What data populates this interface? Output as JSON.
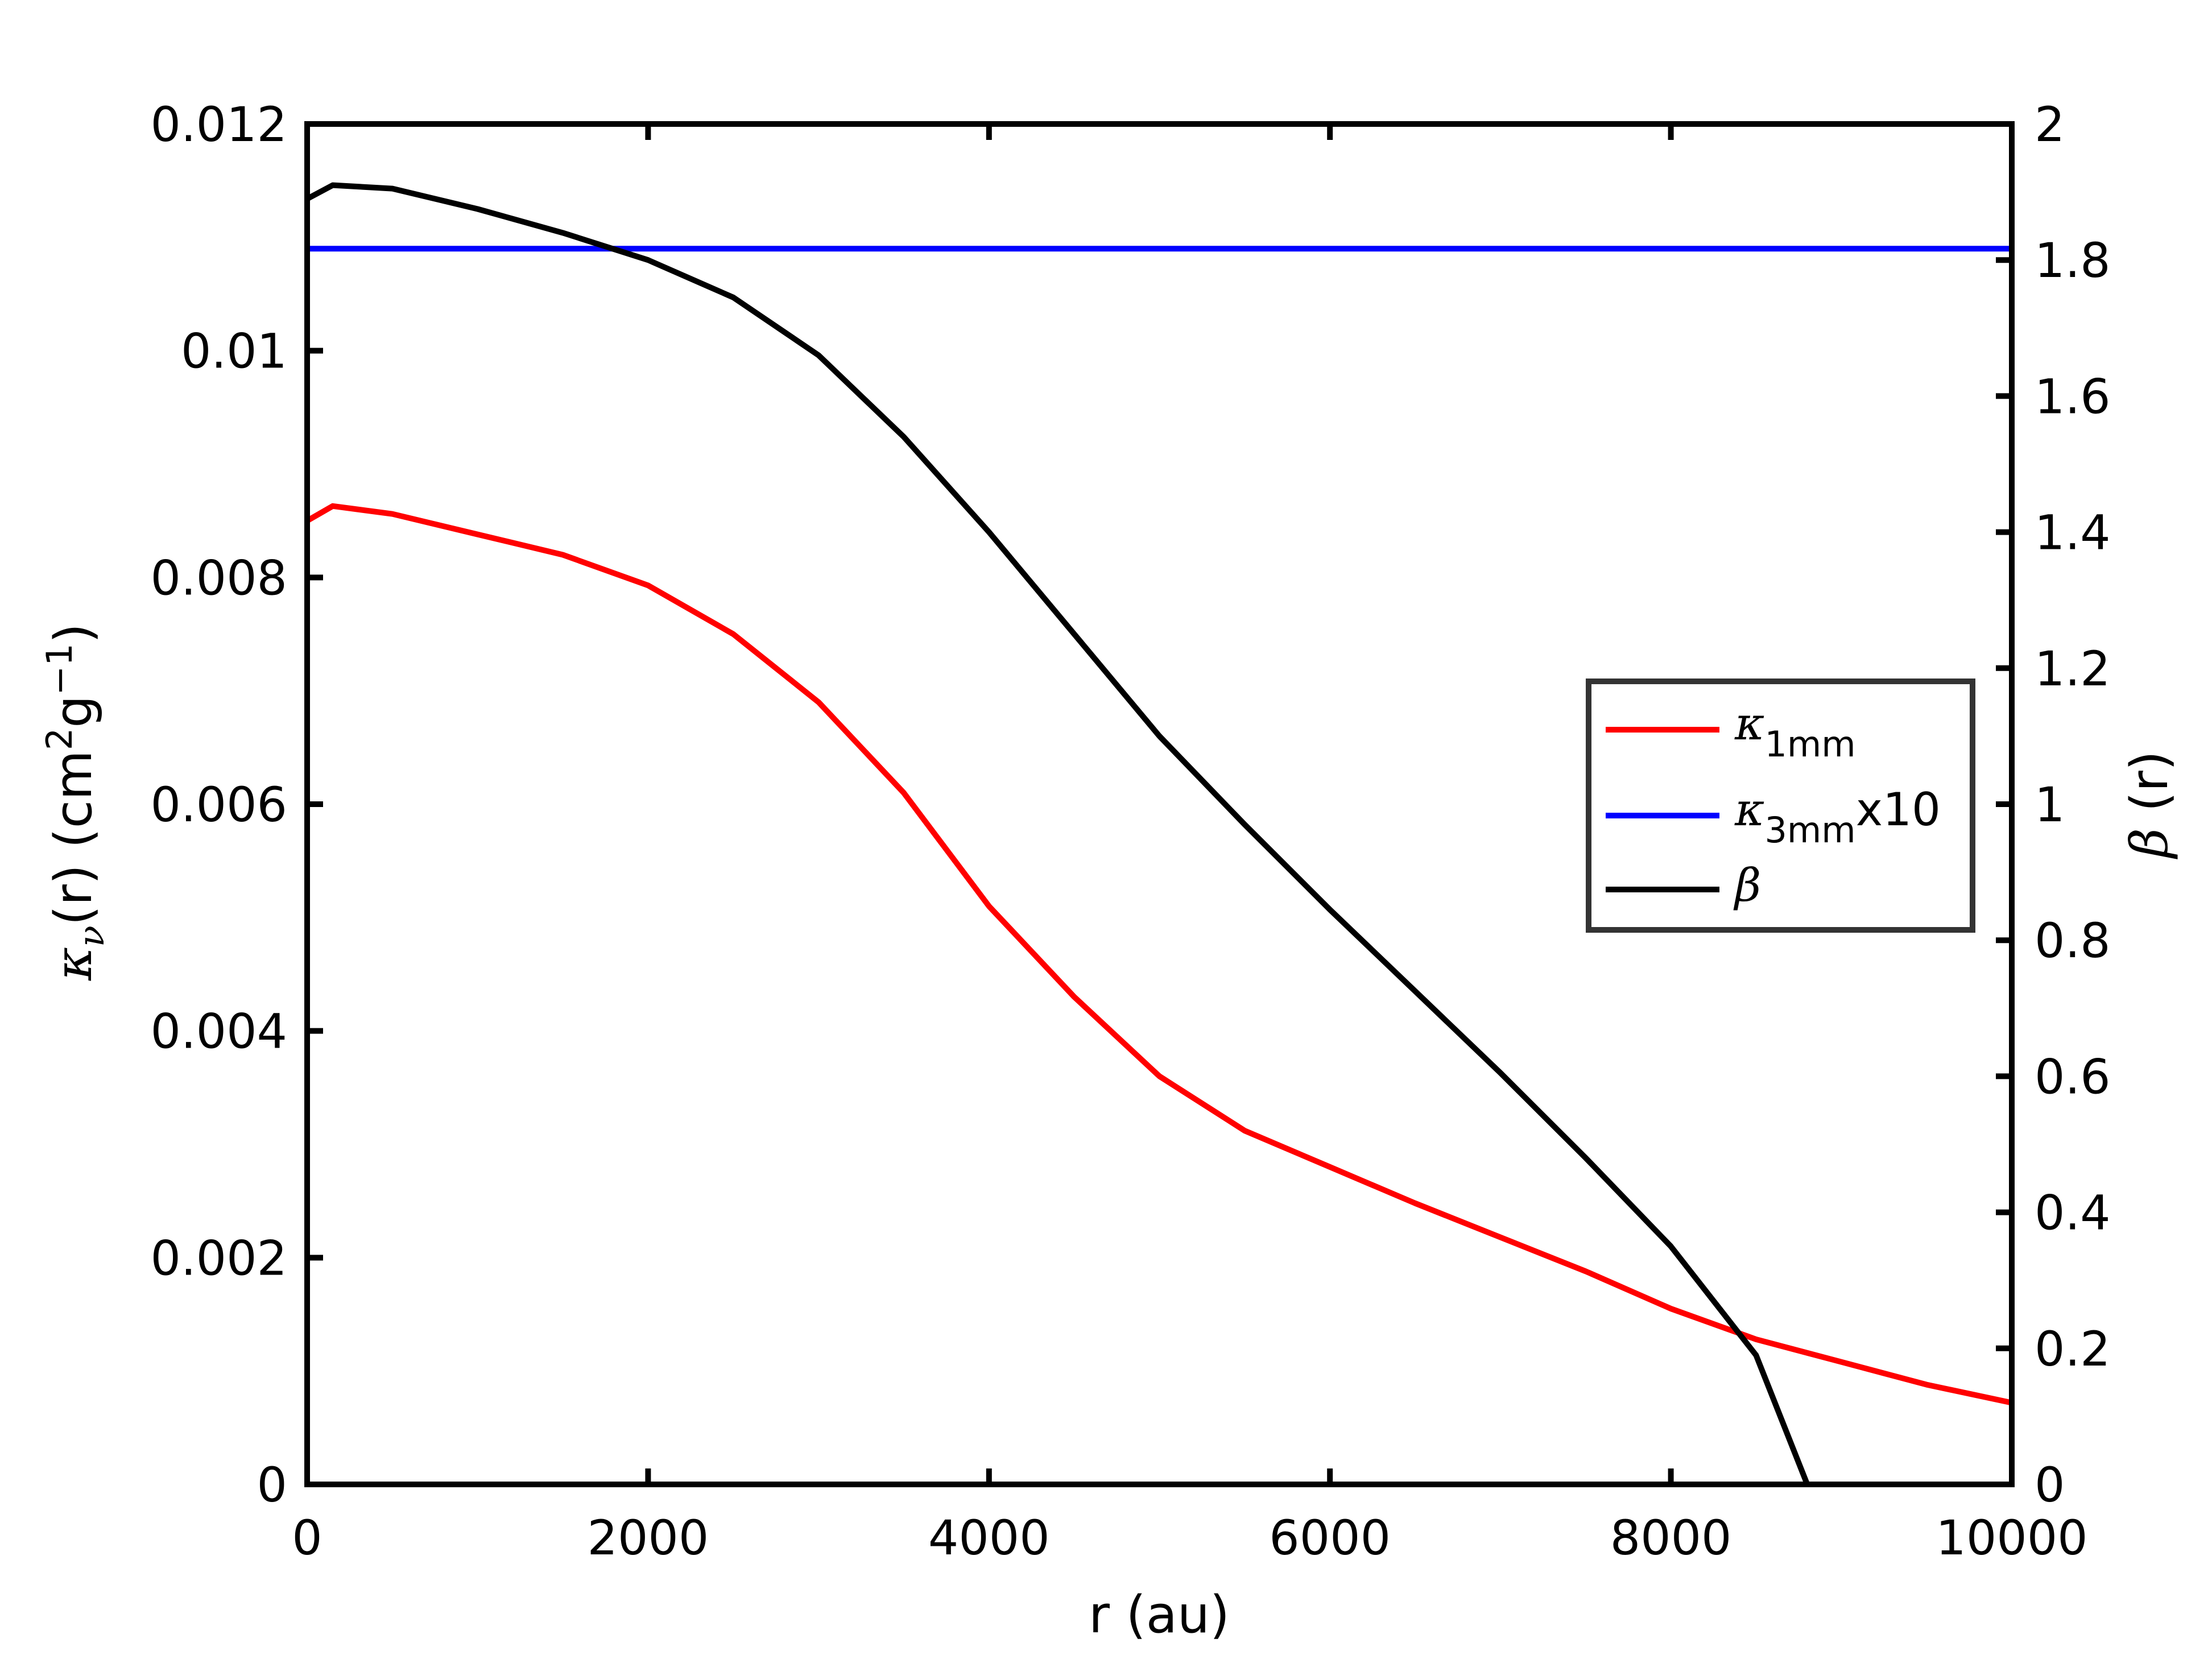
{
  "chart_data": {
    "type": "line",
    "x_axis": {
      "label": "r (au)",
      "range": [
        0,
        10000
      ],
      "ticks": [
        0,
        2000,
        4000,
        6000,
        8000,
        10000
      ],
      "tick_labels": [
        "0",
        "2000",
        "4000",
        "6000",
        "8000",
        "10000"
      ]
    },
    "y_left": {
      "label_parts": {
        "kappa": "κ",
        "sub": "ν",
        "r": "(r)",
        "open": "(cm",
        "sup2": "2",
        "g": "g",
        "supm1": "−1",
        "close": ")"
      },
      "range": [
        0,
        0.012
      ],
      "ticks": [
        0,
        0.002,
        0.004,
        0.006,
        0.008,
        0.01,
        0.012
      ],
      "tick_labels": [
        "0",
        "0.002",
        "0.004",
        "0.006",
        "0.008",
        "0.01",
        "0.012"
      ]
    },
    "y_right": {
      "label_parts": {
        "beta": "β",
        "r": "(r)"
      },
      "range": [
        0,
        2
      ],
      "ticks": [
        0,
        0.2,
        0.4,
        0.6,
        0.8,
        1,
        1.2,
        1.4,
        1.6,
        1.8,
        2
      ],
      "tick_labels": [
        "0",
        "0.2",
        "0.4",
        "0.6",
        "0.8",
        "1",
        "1.2",
        "1.4",
        "1.6",
        "1.8",
        "2"
      ]
    },
    "grid": false,
    "legend_placement": "right",
    "series": [
      {
        "key": "kappa_1mm",
        "axis": "left",
        "color": "#ff0000",
        "legend": {
          "sym": "κ",
          "sub": "1mm",
          "suffix": ""
        },
        "points": [
          [
            0,
            0.0085
          ],
          [
            150,
            0.00863
          ],
          [
            500,
            0.00856
          ],
          [
            1000,
            0.00838
          ],
          [
            1500,
            0.0082
          ],
          [
            2000,
            0.00793
          ],
          [
            2500,
            0.0075
          ],
          [
            3000,
            0.0069
          ],
          [
            3500,
            0.0061
          ],
          [
            4000,
            0.0051
          ],
          [
            4500,
            0.0043
          ],
          [
            5000,
            0.0036
          ],
          [
            5500,
            0.00312
          ],
          [
            6000,
            0.0028
          ],
          [
            6500,
            0.00248
          ],
          [
            7000,
            0.00218
          ],
          [
            7500,
            0.00188
          ],
          [
            8000,
            0.00155
          ],
          [
            8500,
            0.00128
          ],
          [
            9000,
            0.00108
          ],
          [
            9500,
            0.00088
          ],
          [
            10000,
            0.00072
          ]
        ]
      },
      {
        "key": "kappa_3mm_x10",
        "axis": "left",
        "color": "#0000ff",
        "legend": {
          "sym": "κ",
          "sub": "3mm",
          "suffix": "x10"
        },
        "points": [
          [
            0,
            0.0109
          ],
          [
            10000,
            0.0109
          ]
        ]
      },
      {
        "key": "beta",
        "axis": "right",
        "color": "#000000",
        "legend": {
          "sym": "β",
          "sub": "",
          "suffix": ""
        },
        "points": [
          [
            0,
            1.89
          ],
          [
            150,
            1.91
          ],
          [
            500,
            1.905
          ],
          [
            1000,
            1.875
          ],
          [
            1500,
            1.84
          ],
          [
            2000,
            1.8
          ],
          [
            2500,
            1.745
          ],
          [
            3000,
            1.66
          ],
          [
            3500,
            1.54
          ],
          [
            4000,
            1.4
          ],
          [
            4500,
            1.25
          ],
          [
            5000,
            1.1
          ],
          [
            5500,
            0.97
          ],
          [
            6000,
            0.845
          ],
          [
            6500,
            0.725
          ],
          [
            7000,
            0.605
          ],
          [
            7500,
            0.48
          ],
          [
            8000,
            0.35
          ],
          [
            8500,
            0.19
          ],
          [
            8800,
            0
          ]
        ]
      }
    ]
  }
}
